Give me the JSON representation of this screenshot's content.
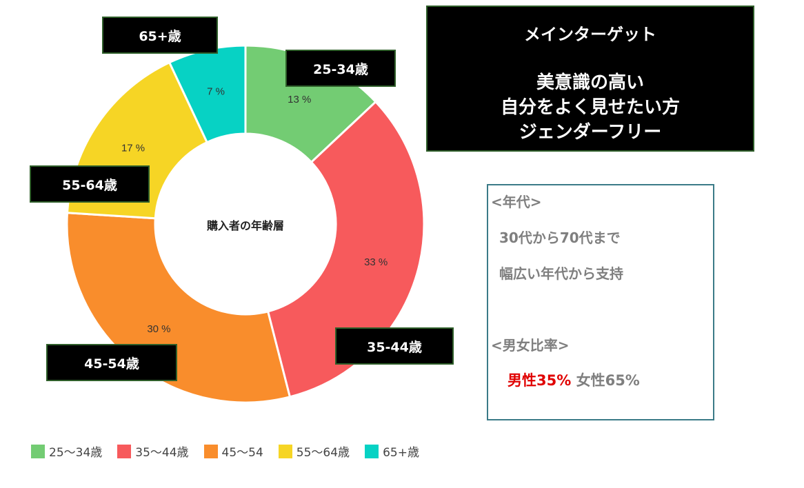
{
  "chart_data": {
    "type": "pie",
    "subtype": "donut",
    "title": "購入者の年齢層",
    "categories": [
      "25-34歳",
      "35-44歳",
      "45-54歳",
      "55-64歳",
      "65+歳"
    ],
    "values": [
      13,
      33,
      30,
      17,
      7
    ],
    "value_labels": [
      "13 %",
      "33 %",
      "30 %",
      "17 %",
      "7 %"
    ],
    "colors": [
      "#73cc73",
      "#f75a5c",
      "#f98d2c",
      "#f6d525",
      "#07d2c4"
    ],
    "legend": {
      "placement": "bottom-left",
      "labels": [
        "25〜34歳",
        "35〜44歳",
        "45〜54",
        "55〜64歳",
        "65+歳"
      ]
    }
  },
  "callouts": {
    "c25": "25-34歳",
    "c35": "35-44歳",
    "c45": "45-54歳",
    "c55": "55-64歳",
    "c65": "65+歳"
  },
  "target": {
    "heading": "メインターゲット",
    "lines": [
      "美意識の高い",
      "自分をよく見せたい方",
      "ジェンダーフリー"
    ]
  },
  "info": {
    "age_heading": "<年代>",
    "age_line1": "30代から70代まで",
    "age_line2": "幅広い年代から支持",
    "gender_heading": "<男女比率>",
    "male": "男性35%",
    "female": "女性65%",
    "male_color": "#e00000"
  }
}
